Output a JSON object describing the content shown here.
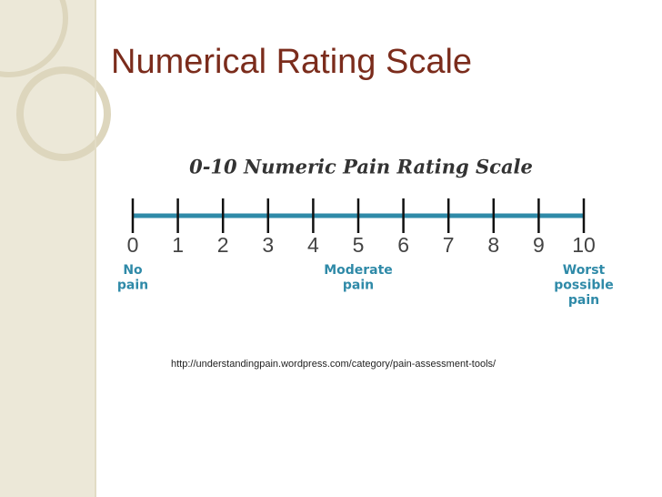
{
  "slide": {
    "title": "Numerical Rating Scale",
    "scale": {
      "title": "0-10 Numeric Pain Rating Scale",
      "labels": [
        "0",
        "1",
        "2",
        "3",
        "4",
        "5",
        "6",
        "7",
        "8",
        "9",
        "10"
      ],
      "anchors": [
        {
          "at": 0,
          "lines": [
            "No",
            "pain"
          ]
        },
        {
          "at": 5,
          "lines": [
            "Moderate",
            "pain"
          ]
        },
        {
          "at": 10,
          "lines": [
            "Worst",
            "possible",
            "pain"
          ]
        }
      ]
    },
    "source": "http://understandingpain.wordpress.com/category/pain-assessment-tools/"
  }
}
